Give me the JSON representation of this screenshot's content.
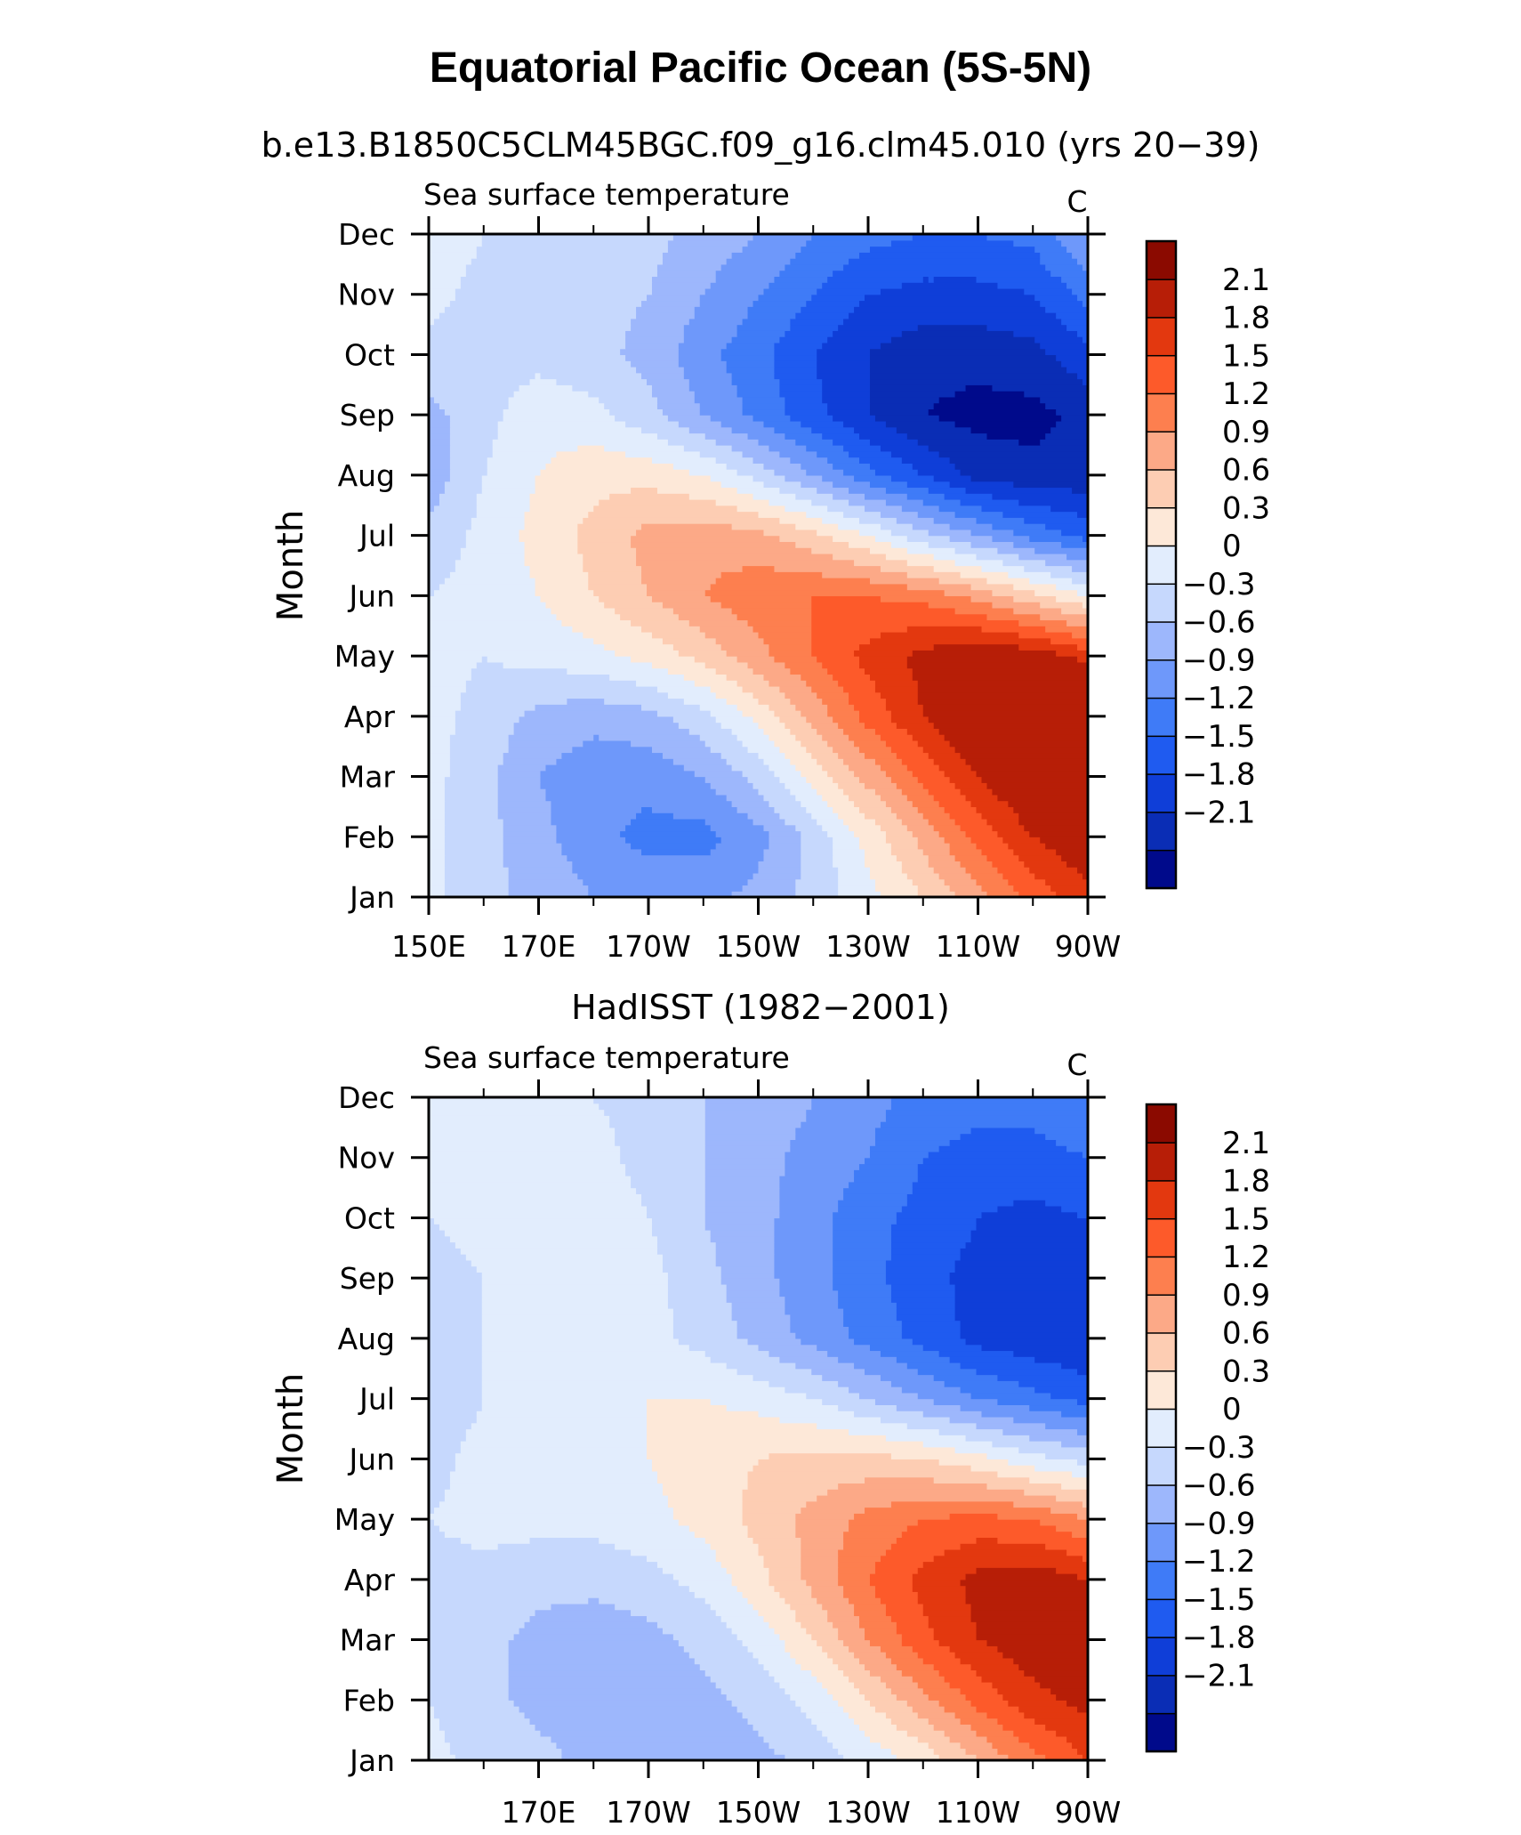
{
  "figure": {
    "title": "Equatorial Pacific Ocean (5S-5N)"
  },
  "colorbar": {
    "colors": [
      "#000a8b",
      "#0a2db5",
      "#0f3ed8",
      "#1f5bf0",
      "#3f7bf7",
      "#6e98fa",
      "#9db7fc",
      "#c6d8fd",
      "#e2edfd",
      "#fde8d8",
      "#fdcdb3",
      "#fca987",
      "#fd7f4f",
      "#fd5a2a",
      "#e3380f",
      "#b71e07",
      "#8b0a00"
    ],
    "labels": [
      "2.1",
      "1.8",
      "1.5",
      "1.2",
      "0.9",
      "0.6",
      "0.3",
      "0",
      "−0.3",
      "−0.6",
      "−0.9",
      "−1.2",
      "−1.5",
      "−1.8",
      "−2.1"
    ]
  },
  "chart_data": [
    {
      "type": "heatmap",
      "title": "b.e13.B1850C5CLM45BGC.f09_g16.clm45.010 (yrs 20−39)",
      "left_label": "Sea surface temperature",
      "right_label": "C",
      "ylabel": "Month",
      "xlabel": "",
      "x_ticks": [
        "150E",
        "170E",
        "170W",
        "150W",
        "130W",
        "110W",
        "90W"
      ],
      "x_tick_values": [
        150,
        170,
        190,
        210,
        230,
        250,
        270
      ],
      "y_ticks": [
        "Jan",
        "Feb",
        "Mar",
        "Apr",
        "May",
        "Jun",
        "Jul",
        "Aug",
        "Sep",
        "Oct",
        "Nov",
        "Dec"
      ],
      "xlim": [
        150,
        270
      ],
      "ylim": [
        1,
        12
      ],
      "levels": [
        -2.1,
        -1.8,
        -1.5,
        -1.2,
        -0.9,
        -0.6,
        -0.3,
        0,
        0.3,
        0.6,
        0.9,
        1.2,
        1.5,
        1.8,
        2.1
      ],
      "unit": "C",
      "x": [
        150,
        160,
        170,
        180,
        190,
        200,
        210,
        220,
        230,
        240,
        250,
        260,
        270
      ],
      "y": [
        1,
        2,
        3,
        4,
        5,
        6,
        7,
        8,
        9,
        10,
        11,
        12
      ],
      "z": [
        [
          0.1,
          -0.2,
          -0.4,
          -0.6,
          -0.7,
          -0.7,
          -0.5,
          -0.2,
          0.2,
          0.6,
          1.1,
          1.6,
          2.0
        ],
        [
          0.1,
          -0.2,
          -0.5,
          -0.8,
          -1.0,
          -1.0,
          -0.7,
          -0.2,
          0.4,
          1.0,
          1.6,
          2.1,
          2.4
        ],
        [
          0.1,
          -0.2,
          -0.6,
          -0.8,
          -0.8,
          -0.6,
          -0.2,
          0.4,
          1.0,
          1.6,
          2.1,
          2.5,
          2.6
        ],
        [
          0.1,
          -0.1,
          -0.4,
          -0.5,
          -0.4,
          -0.1,
          0.4,
          1.0,
          1.6,
          2.1,
          2.5,
          2.7,
          2.6
        ],
        [
          0.1,
          0.0,
          0.1,
          0.2,
          0.4,
          0.7,
          1.1,
          1.5,
          1.9,
          2.2,
          2.4,
          2.3,
          2.0
        ],
        [
          0.0,
          0.1,
          0.3,
          0.6,
          0.9,
          1.2,
          1.4,
          1.5,
          1.5,
          1.4,
          1.1,
          0.7,
          0.3
        ],
        [
          -0.2,
          0.1,
          0.4,
          0.7,
          1.0,
          1.1,
          1.0,
          0.7,
          0.3,
          -0.2,
          -0.6,
          -1.0,
          -1.3
        ],
        [
          -0.5,
          0.0,
          0.3,
          0.5,
          0.5,
          0.3,
          -0.1,
          -0.6,
          -1.1,
          -1.5,
          -1.9,
          -2.0,
          -2.0
        ],
        [
          -0.4,
          -0.1,
          0.2,
          0.1,
          -0.2,
          -0.6,
          -1.0,
          -1.4,
          -1.8,
          -2.1,
          -2.2,
          -2.2,
          -2.0
        ],
        [
          -0.1,
          -0.2,
          -0.1,
          -0.2,
          -0.4,
          -0.8,
          -1.1,
          -1.5,
          -1.8,
          -2.0,
          -2.0,
          -1.9,
          -1.6
        ],
        [
          0.1,
          -0.1,
          -0.2,
          -0.2,
          -0.3,
          -0.6,
          -0.9,
          -1.2,
          -1.5,
          -1.6,
          -1.6,
          -1.5,
          -1.1
        ],
        [
          0.2,
          0.0,
          -0.2,
          -0.2,
          -0.2,
          -0.4,
          -0.6,
          -0.9,
          -1.1,
          -1.2,
          -1.2,
          -1.1,
          -0.6
        ]
      ]
    },
    {
      "type": "heatmap",
      "title": "HadISST (1982−2001)",
      "left_label": "Sea surface temperature",
      "right_label": "C",
      "ylabel": "Month",
      "xlabel": "",
      "x_ticks": [
        "170E",
        "170W",
        "150W",
        "130W",
        "110W",
        "90W"
      ],
      "x_tick_values": [
        170,
        190,
        210,
        230,
        250,
        270
      ],
      "y_ticks": [
        "Jan",
        "Feb",
        "Mar",
        "Apr",
        "May",
        "Jun",
        "Jul",
        "Aug",
        "Sep",
        "Oct",
        "Nov",
        "Dec"
      ],
      "xlim": [
        150,
        270
      ],
      "ylim": [
        1,
        12
      ],
      "levels": [
        -2.1,
        -1.8,
        -1.5,
        -1.2,
        -0.9,
        -0.6,
        -0.3,
        0,
        0.3,
        0.6,
        0.9,
        1.2,
        1.5,
        1.8,
        2.1
      ],
      "unit": "C",
      "x": [
        150,
        160,
        170,
        180,
        190,
        200,
        210,
        220,
        230,
        240,
        250,
        260,
        270
      ],
      "y": [
        1,
        2,
        3,
        4,
        5,
        6,
        7,
        8,
        9,
        10,
        11,
        12
      ],
      "z": [
        [
          0.1,
          -0.1,
          -0.2,
          -0.4,
          -0.5,
          -0.5,
          -0.4,
          -0.2,
          0.1,
          0.4,
          0.9,
          1.4,
          1.8
        ],
        [
          0.0,
          -0.2,
          -0.4,
          -0.5,
          -0.5,
          -0.4,
          -0.2,
          0.1,
          0.6,
          1.1,
          1.6,
          2.0,
          2.2
        ],
        [
          -0.1,
          -0.2,
          -0.4,
          -0.5,
          -0.4,
          -0.2,
          0.1,
          0.6,
          1.2,
          1.7,
          2.1,
          2.3,
          2.3
        ],
        [
          -0.1,
          -0.1,
          -0.2,
          -0.2,
          -0.1,
          0.1,
          0.5,
          1.0,
          1.5,
          1.9,
          2.2,
          2.3,
          2.1
        ],
        [
          0.0,
          0.1,
          0.1,
          0.1,
          0.2,
          0.4,
          0.7,
          1.0,
          1.3,
          1.5,
          1.6,
          1.5,
          1.2
        ],
        [
          -0.1,
          0.1,
          0.2,
          0.2,
          0.3,
          0.5,
          0.6,
          0.7,
          0.7,
          0.6,
          0.4,
          0.1,
          -0.1
        ],
        [
          -0.2,
          0.0,
          0.2,
          0.2,
          0.3,
          0.3,
          0.2,
          0.0,
          -0.3,
          -0.6,
          -0.9,
          -1.1,
          -1.3
        ],
        [
          -0.2,
          0.0,
          0.2,
          0.2,
          0.1,
          -0.1,
          -0.4,
          -0.7,
          -1.0,
          -1.3,
          -1.6,
          -1.7,
          -1.8
        ],
        [
          -0.1,
          0.0,
          0.2,
          0.3,
          0.1,
          -0.2,
          -0.5,
          -0.8,
          -1.1,
          -1.4,
          -1.6,
          -1.7,
          -1.7
        ],
        [
          0.0,
          0.1,
          0.2,
          0.2,
          0.0,
          -0.3,
          -0.5,
          -0.8,
          -1.1,
          -1.3,
          -1.5,
          -1.6,
          -1.5
        ],
        [
          0.1,
          0.1,
          0.1,
          0.1,
          -0.1,
          -0.3,
          -0.5,
          -0.7,
          -0.9,
          -1.2,
          -1.3,
          -1.3,
          -1.2
        ],
        [
          0.1,
          0.1,
          0.1,
          0.0,
          -0.1,
          -0.3,
          -0.4,
          -0.6,
          -0.8,
          -1.0,
          -1.1,
          -1.1,
          -0.9
        ]
      ]
    }
  ]
}
